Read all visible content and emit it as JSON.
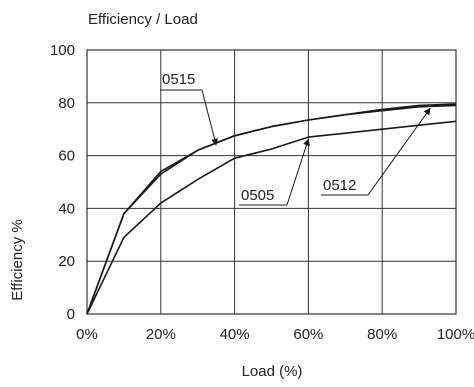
{
  "chart_data": {
    "type": "line",
    "title": "Efficiency / Load",
    "xlabel": "Load (%)",
    "ylabel": "Efficiency %",
    "x": [
      0,
      10,
      20,
      30,
      40,
      50,
      60,
      70,
      80,
      90,
      100
    ],
    "x_tick_labels": [
      "0%",
      "20%",
      "40%",
      "60%",
      "80%",
      "100%"
    ],
    "y_tick_labels": [
      "0",
      "20",
      "40",
      "60",
      "80",
      "100"
    ],
    "xlim": [
      0,
      100
    ],
    "ylim": [
      0,
      100
    ],
    "grid": true,
    "series": [
      {
        "name": "0515",
        "values": [
          0,
          38,
          54,
          62,
          67.5,
          71,
          73.5,
          75.5,
          77.5,
          79,
          79.5
        ]
      },
      {
        "name": "0512",
        "values": [
          0,
          38,
          53,
          62,
          67.5,
          71,
          73.5,
          75.5,
          77,
          78.5,
          79
        ]
      },
      {
        "name": "0505",
        "values": [
          0,
          29,
          42,
          51,
          59,
          62.5,
          67,
          68.5,
          70,
          71.5,
          73
        ]
      }
    ],
    "annotations": [
      {
        "label": "0515",
        "series": "0515",
        "point_x": 35
      },
      {
        "label": "0505",
        "series": "0505",
        "point_x": 60
      },
      {
        "label": "0512",
        "series": "0512",
        "point_x": 93
      }
    ],
    "line_color": "#1a1a1a",
    "grid_color": "#333333"
  }
}
